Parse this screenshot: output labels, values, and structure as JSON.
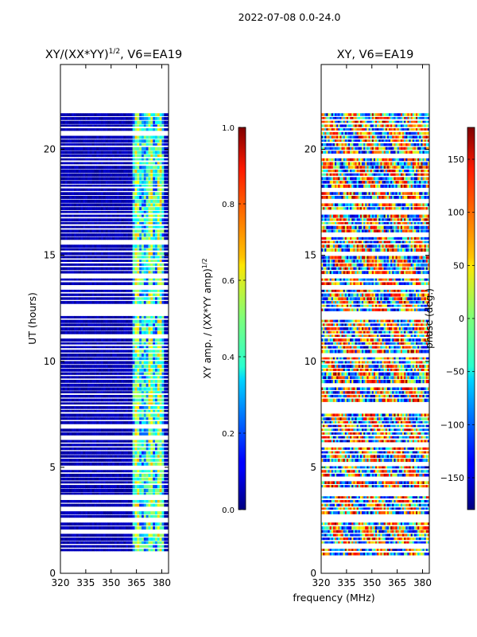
{
  "page_title": "2022-07-08 0.0-24.0",
  "shared_xlabel": "frequency (MHz)",
  "chart_data": [
    {
      "type": "heatmap",
      "title_main": "XY/(XX*YY)",
      "title_sup": "1/2",
      "title_tail": ", V6=EA19",
      "xlabel": "",
      "ylabel": "UT (hours)",
      "xlim": [
        320,
        384
      ],
      "ylim": [
        0,
        24
      ],
      "xticks": [
        320,
        335,
        350,
        365,
        380
      ],
      "yticks": [
        0,
        5,
        10,
        15,
        20
      ],
      "data_yrange": [
        0.8,
        21.7
      ],
      "colorbar": {
        "label_main": "XY amp. / (XX*YY amp)",
        "label_sup": "1/2",
        "range": [
          0.0,
          1.0
        ],
        "ticks": [
          "0.0",
          "0.2",
          "0.4",
          "0.6",
          "0.8",
          "1.0"
        ],
        "tick_values": [
          0.0,
          0.2,
          0.4,
          0.6,
          0.8,
          1.0
        ],
        "colormap": "jet"
      }
    },
    {
      "type": "heatmap",
      "title_main": "XY, V6=EA19",
      "xlabel": "frequency (MHz)",
      "ylabel": "",
      "xlim": [
        320,
        384
      ],
      "ylim": [
        0,
        24
      ],
      "xticks": [
        320,
        335,
        350,
        365,
        380
      ],
      "yticks": [
        0,
        5,
        10,
        15,
        20
      ],
      "data_yrange": [
        0.8,
        21.7
      ],
      "colorbar": {
        "label_main": "phase (deg.)",
        "range": [
          -180,
          180
        ],
        "ticks": [
          "150",
          "100",
          "50",
          "0",
          "−50",
          "−100",
          "−150"
        ],
        "tick_values": [
          150,
          100,
          50,
          0,
          -50,
          -100,
          -150
        ],
        "colormap": "jet"
      }
    }
  ]
}
